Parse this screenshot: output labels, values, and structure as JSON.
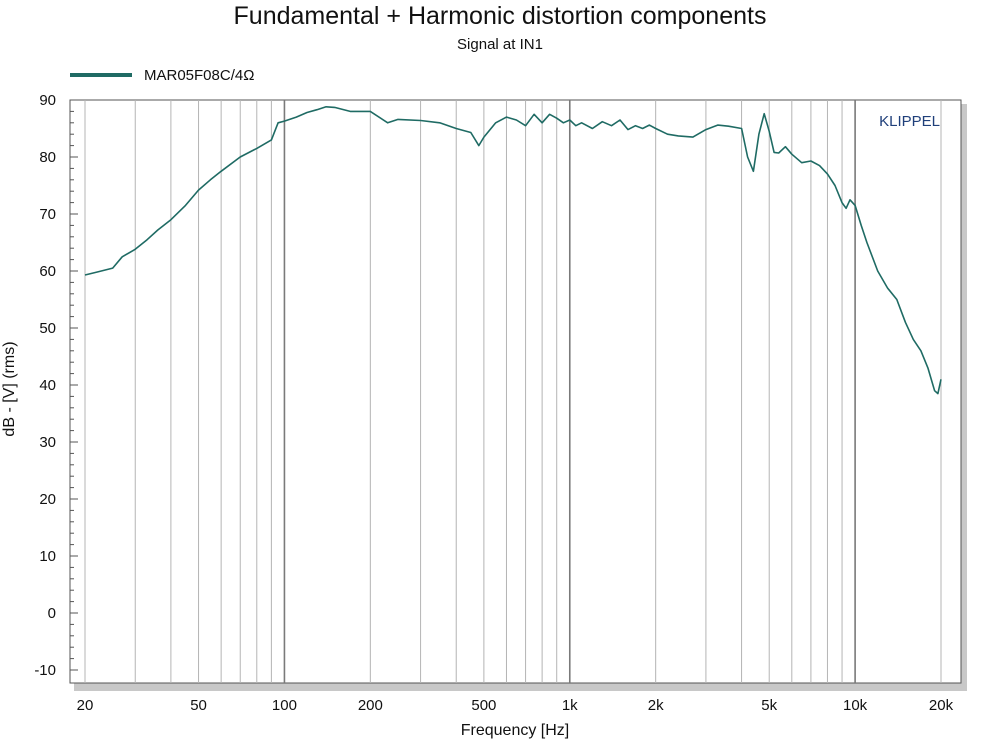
{
  "chart_data": {
    "type": "line",
    "title": "Fundamental + Harmonic distortion components",
    "subtitle": "Signal at IN1",
    "xlabel": "Frequency [Hz]",
    "ylabel": "dB - [V]  (rms)",
    "x_scale": "log",
    "xlim": [
      20,
      20000
    ],
    "ylim": [
      -10,
      90
    ],
    "grid": true,
    "legend_position": "top-left",
    "watermark": "KLIPPEL",
    "x_tick_values": [
      20,
      50,
      100,
      200,
      500,
      1000,
      2000,
      5000,
      10000,
      20000
    ],
    "x_tick_labels": [
      "20",
      "50",
      "100",
      "200",
      "500",
      "1k",
      "2k",
      "5k",
      "10k",
      "20k"
    ],
    "y_tick_values": [
      90,
      80,
      70,
      60,
      50,
      40,
      30,
      20,
      10,
      0,
      -10
    ],
    "y_tick_labels": [
      "90",
      "80",
      "70",
      "60",
      "50",
      "40",
      "30",
      "20",
      "10",
      "0",
      "-10"
    ],
    "series": [
      {
        "name": "MAR05F08C/4Ω",
        "color": "#1f6b64",
        "x": [
          20,
          22,
          25,
          27,
          30,
          33,
          36,
          40,
          45,
          50,
          55,
          60,
          70,
          80,
          90,
          95,
          100,
          110,
          120,
          130,
          140,
          150,
          170,
          200,
          230,
          250,
          300,
          350,
          400,
          450,
          480,
          500,
          550,
          600,
          650,
          700,
          750,
          800,
          850,
          900,
          950,
          1000,
          1050,
          1100,
          1200,
          1300,
          1400,
          1500,
          1600,
          1700,
          1800,
          1900,
          2000,
          2200,
          2400,
          2700,
          3000,
          3300,
          3600,
          4000,
          4200,
          4400,
          4600,
          4800,
          5000,
          5200,
          5400,
          5700,
          6000,
          6500,
          7000,
          7500,
          8000,
          8500,
          9000,
          9300,
          9600,
          10000,
          10500,
          11000,
          12000,
          13000,
          14000,
          15000,
          16000,
          17000,
          18000,
          19000,
          19500,
          20000
        ],
        "y": [
          59.3,
          59.8,
          60.5,
          62.5,
          63.8,
          65.5,
          67.2,
          69.0,
          71.5,
          74.2,
          76.0,
          77.5,
          80.0,
          81.5,
          83.0,
          86.0,
          86.3,
          87.0,
          87.8,
          88.3,
          88.8,
          88.7,
          88.0,
          88.0,
          86.0,
          86.6,
          86.4,
          86.0,
          85.0,
          84.3,
          82.0,
          83.5,
          86.0,
          87.0,
          86.5,
          85.5,
          87.5,
          86.0,
          87.5,
          86.8,
          86.0,
          86.5,
          85.5,
          86.0,
          85.0,
          86.2,
          85.5,
          86.5,
          84.8,
          85.5,
          85.0,
          85.6,
          85.0,
          84.0,
          83.7,
          83.5,
          84.8,
          85.6,
          85.4,
          85.0,
          80.0,
          77.5,
          84.0,
          87.6,
          84.5,
          80.8,
          80.7,
          81.8,
          80.5,
          79.0,
          79.3,
          78.5,
          77.0,
          75.0,
          72.0,
          71.0,
          72.5,
          71.5,
          68.0,
          65.0,
          60.0,
          57.0,
          55.0,
          51.0,
          48.0,
          46.0,
          43.0,
          39.0,
          38.5,
          41.0
        ]
      }
    ]
  }
}
